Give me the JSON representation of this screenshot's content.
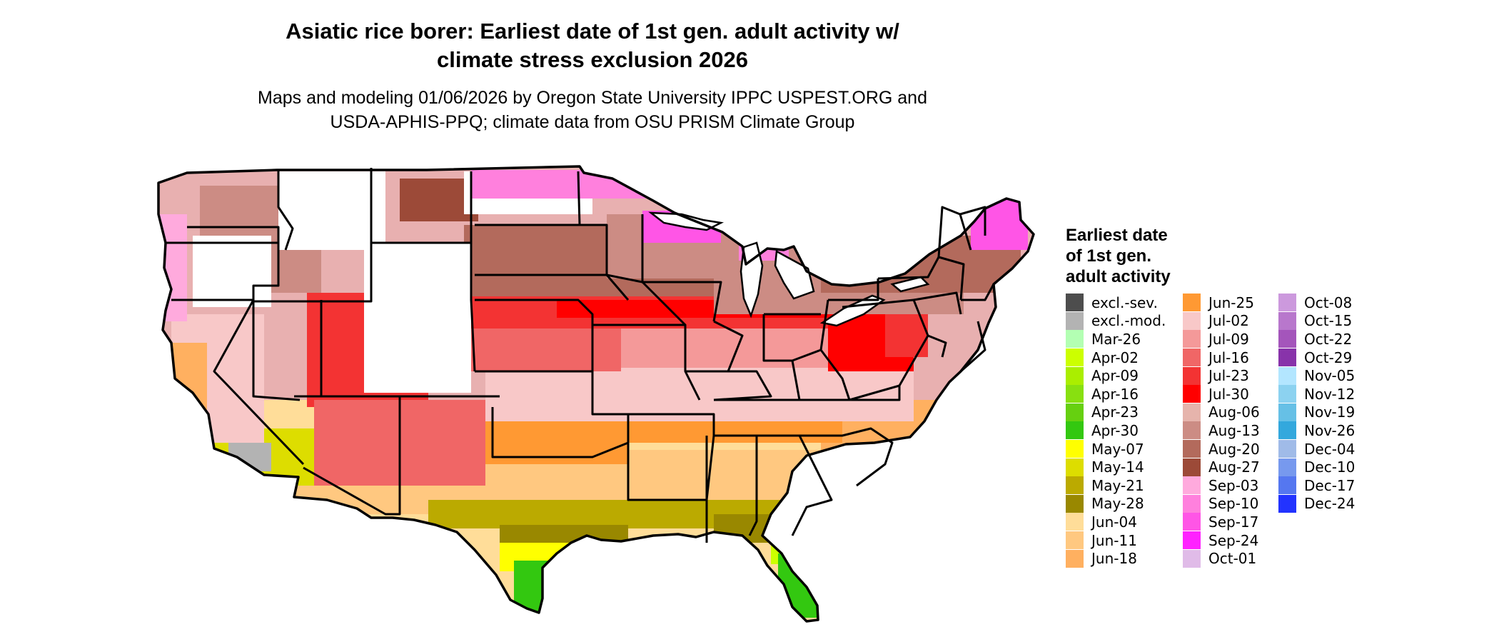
{
  "title": [
    "Asiatic rice borer: Earliest date of 1st gen. adult activity w/",
    "climate stress exclusion 2026"
  ],
  "subtitle": [
    "Maps and modeling 01/06/2026 by Oregon State University IPPC USPEST.ORG and",
    "USDA-APHIS-PPQ; climate data from OSU PRISM Climate Group"
  ],
  "legend": {
    "title": [
      "Earliest date",
      "of 1st gen.",
      "adult activity"
    ],
    "items": [
      {
        "label": "excl.-sev.",
        "color": "#4d4d4d"
      },
      {
        "label": "excl.-mod.",
        "color": "#b3b3b3"
      },
      {
        "label": "Mar-26",
        "color": "#b3ffb3"
      },
      {
        "label": "Apr-02",
        "color": "#ccff00"
      },
      {
        "label": "Apr-09",
        "color": "#aaee00"
      },
      {
        "label": "Apr-16",
        "color": "#88e010"
      },
      {
        "label": "Apr-23",
        "color": "#66d010"
      },
      {
        "label": "Apr-30",
        "color": "#33c810"
      },
      {
        "label": "May-07",
        "color": "#ffff00"
      },
      {
        "label": "May-14",
        "color": "#dddd00"
      },
      {
        "label": "May-21",
        "color": "#bbaa00"
      },
      {
        "label": "May-28",
        "color": "#998800"
      },
      {
        "label": "Jun-04",
        "color": "#ffdd99"
      },
      {
        "label": "Jun-11",
        "color": "#ffc880"
      },
      {
        "label": "Jun-18",
        "color": "#ffb060"
      },
      {
        "label": "Jun-25",
        "color": "#ff9933"
      },
      {
        "label": "Jul-02",
        "color": "#f8c8c8"
      },
      {
        "label": "Jul-09",
        "color": "#f49999"
      },
      {
        "label": "Jul-16",
        "color": "#f06666"
      },
      {
        "label": "Jul-23",
        "color": "#f33333"
      },
      {
        "label": "Jul-30",
        "color": "#ff0000"
      },
      {
        "label": "Aug-06",
        "color": "#e6b4ac"
      },
      {
        "label": "Aug-13",
        "color": "#cc8c84"
      },
      {
        "label": "Aug-20",
        "color": "#b36a5c"
      },
      {
        "label": "Aug-27",
        "color": "#9c4a38"
      },
      {
        "label": "Sep-03",
        "color": "#ffaadd"
      },
      {
        "label": "Sep-10",
        "color": "#ff80dd"
      },
      {
        "label": "Sep-17",
        "color": "#ff55e6"
      },
      {
        "label": "Sep-24",
        "color": "#ff22ff"
      },
      {
        "label": "Oct-01",
        "color": "#e0bbe8"
      },
      {
        "label": "Oct-08",
        "color": "#cc99dd"
      },
      {
        "label": "Oct-15",
        "color": "#b877cc"
      },
      {
        "label": "Oct-22",
        "color": "#a455bb"
      },
      {
        "label": "Oct-29",
        "color": "#8833aa"
      },
      {
        "label": "Nov-05",
        "color": "#b3e6ff"
      },
      {
        "label": "Nov-12",
        "color": "#8cd2f0"
      },
      {
        "label": "Nov-19",
        "color": "#66c0e6"
      },
      {
        "label": "Nov-26",
        "color": "#33a8dd"
      },
      {
        "label": "Dec-04",
        "color": "#a0bbe8"
      },
      {
        "label": "Dec-10",
        "color": "#7799ee"
      },
      {
        "label": "Dec-17",
        "color": "#5577f0"
      },
      {
        "label": "Dec-24",
        "color": "#2233ff"
      }
    ]
  }
}
